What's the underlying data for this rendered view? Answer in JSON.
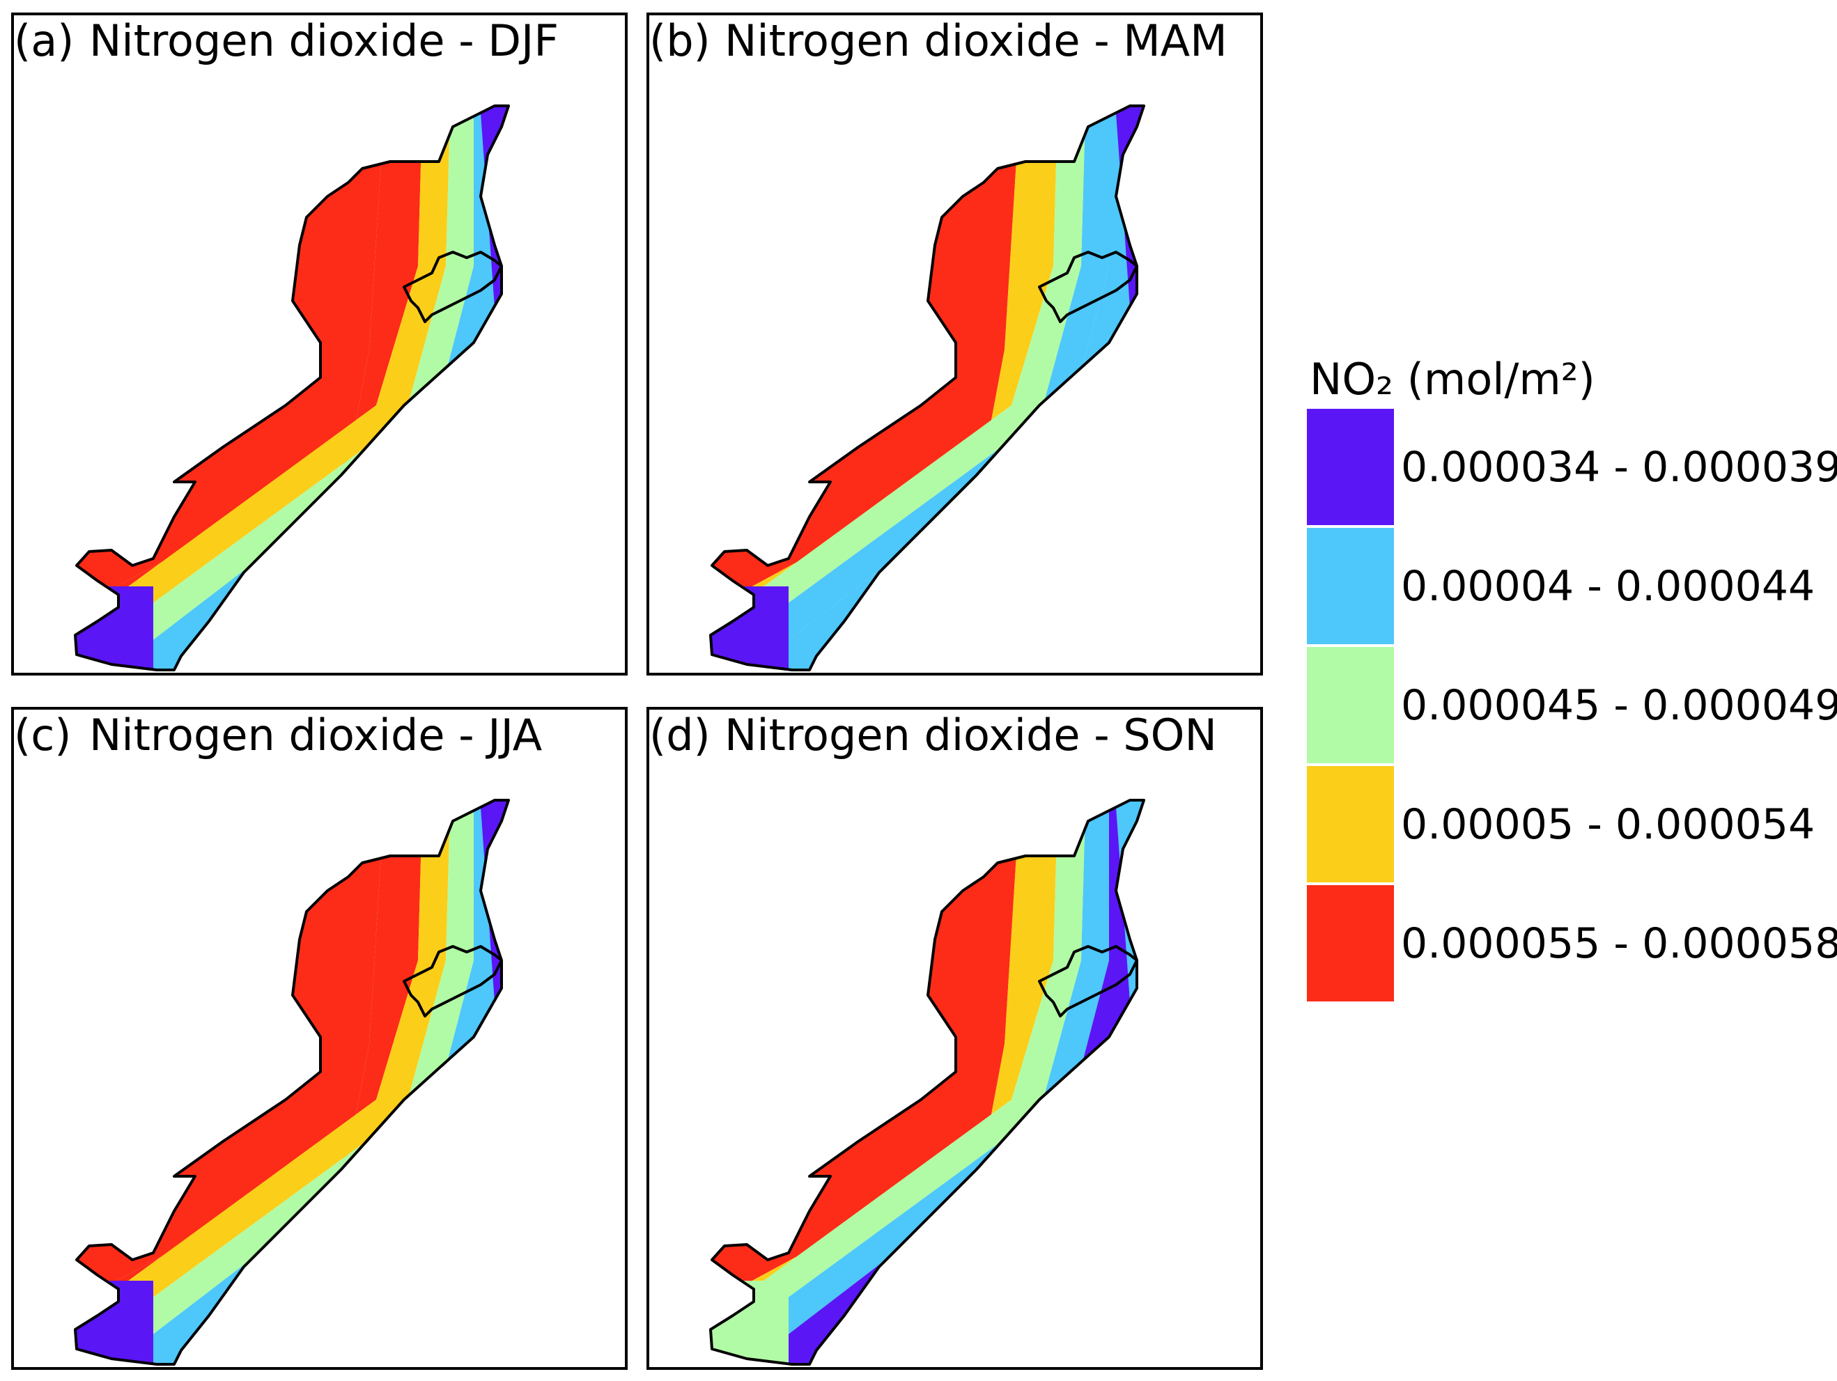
{
  "panels": [
    {
      "letter": "(a)",
      "title": "Nitrogen dioxide - DJF",
      "cls": [
        "c4",
        "c4",
        "c3",
        "c2",
        "c1",
        "c0",
        "c0"
      ]
    },
    {
      "letter": "(b)",
      "title": "Nitrogen dioxide - MAM",
      "cls": [
        "c4",
        "c3",
        "c2",
        "c1",
        "c1",
        "c0",
        "c0"
      ]
    },
    {
      "letter": "(c)",
      "title": "Nitrogen dioxide - JJA",
      "cls": [
        "c4",
        "c4",
        "c3",
        "c2",
        "c1",
        "c0",
        "c0"
      ]
    },
    {
      "letter": "(d)",
      "title": "Nitrogen dioxide - SON",
      "cls": [
        "c4",
        "c3",
        "c2",
        "c1",
        "c0",
        "c2",
        "c1"
      ]
    }
  ],
  "legend": {
    "title": "NO₂ (mol/m²)",
    "classes": [
      {
        "label": "0.000034 - 0.000039",
        "color": "#5a16f5"
      },
      {
        "label": "0.00004 - 0.000044",
        "color": "#4ec7fb"
      },
      {
        "label": "0.000045 - 0.000049",
        "color": "#b2fba6"
      },
      {
        "label": "0.00005 - 0.000054",
        "color": "#fbce1a"
      },
      {
        "label": "0.000055 - 0.000058",
        "color": "#fc2c18"
      }
    ]
  }
}
